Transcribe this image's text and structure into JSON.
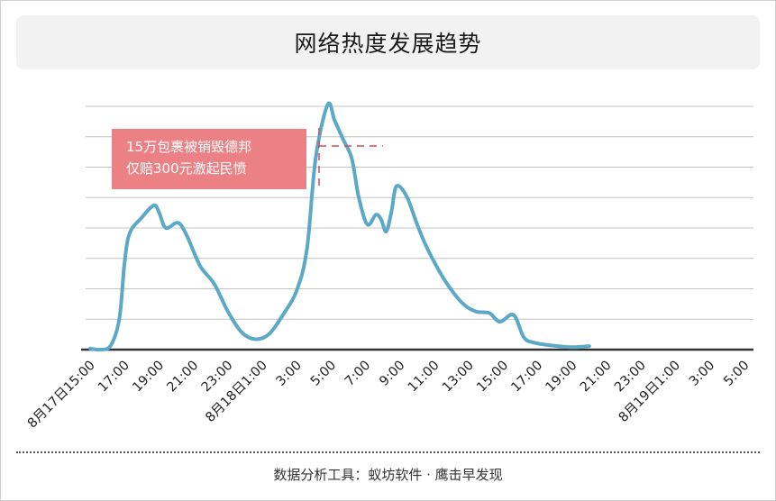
{
  "header": {
    "title": "网络热度发展趋势"
  },
  "footer": {
    "text": "数据分析工具：蚁坊软件 · 鹰击早发现"
  },
  "colors": {
    "line": "#5ba8c7",
    "callout": "#ec8185",
    "callout_dash": "#d24c5a"
  },
  "chart_data": {
    "type": "line",
    "title": "网络热度发展趋势",
    "xlabel": "",
    "ylabel": "",
    "grid": true,
    "y_tick_labels_shown": false,
    "ylim": [
      0,
      7
    ],
    "categories": [
      "8月17日15:00",
      "17:00",
      "19:00",
      "21:00",
      "23:00",
      "8月18日1:00",
      "3:00",
      "5:00",
      "7:00",
      "9:00",
      "11:00",
      "13:00",
      "15:00",
      "17:00",
      "19:00",
      "21:00",
      "23:00",
      "8月19日1:00",
      "3:00",
      "5:00"
    ],
    "series": [
      {
        "points": [
          [
            0,
            0.03
          ],
          [
            0.3,
            0.0
          ],
          [
            0.6,
            0.12
          ],
          [
            0.85,
            0.9
          ],
          [
            1.0,
            2.5
          ],
          [
            1.15,
            3.35
          ],
          [
            1.5,
            3.8
          ],
          [
            1.85,
            4.15
          ],
          [
            2.0,
            3.95
          ],
          [
            2.2,
            3.5
          ],
          [
            2.55,
            3.65
          ],
          [
            2.8,
            3.3
          ],
          [
            3.2,
            2.4
          ],
          [
            3.6,
            1.9
          ],
          [
            4.0,
            1.1
          ],
          [
            4.4,
            0.5
          ],
          [
            4.8,
            0.3
          ],
          [
            5.2,
            0.45
          ],
          [
            5.6,
            1.0
          ],
          [
            6.0,
            1.7
          ],
          [
            6.3,
            2.9
          ],
          [
            6.55,
            5.5
          ],
          [
            6.9,
            7.05
          ],
          [
            7.1,
            6.6
          ],
          [
            7.35,
            6.05
          ],
          [
            7.6,
            5.5
          ],
          [
            7.8,
            4.4
          ],
          [
            8.05,
            3.6
          ],
          [
            8.3,
            3.88
          ],
          [
            8.45,
            3.75
          ],
          [
            8.6,
            3.4
          ],
          [
            8.75,
            3.95
          ],
          [
            8.9,
            4.7
          ],
          [
            9.2,
            4.4
          ],
          [
            9.5,
            3.6
          ],
          [
            9.8,
            2.9
          ],
          [
            10.3,
            2.0
          ],
          [
            10.8,
            1.35
          ],
          [
            11.2,
            1.1
          ],
          [
            11.6,
            1.05
          ],
          [
            11.9,
            0.8
          ],
          [
            12.3,
            1.0
          ],
          [
            12.6,
            0.35
          ],
          [
            12.9,
            0.2
          ],
          [
            13.4,
            0.12
          ],
          [
            14.0,
            0.07
          ],
          [
            14.5,
            0.1
          ]
        ]
      }
    ],
    "annotations": [
      {
        "text_lines": [
          "15万包裹被销毁德邦",
          "仅赔300元激起民愤"
        ],
        "x": 6.9
      }
    ]
  }
}
